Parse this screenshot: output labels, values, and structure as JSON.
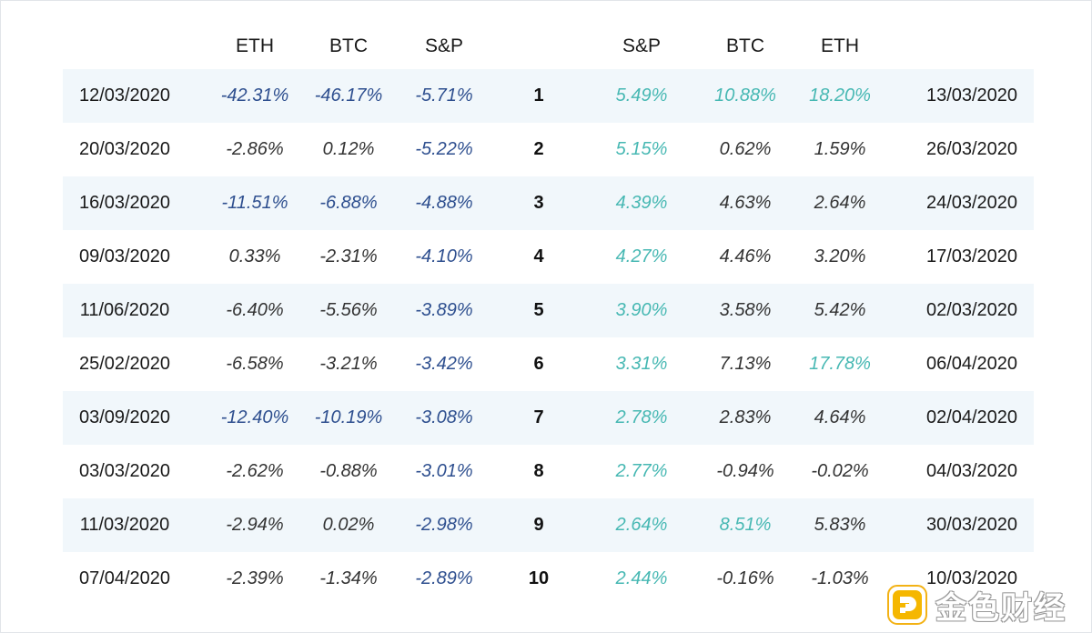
{
  "chart_data": {
    "type": "table",
    "columns": [
      "",
      "ETH",
      "BTC",
      "S&P",
      "",
      "S&P",
      "BTC",
      "ETH",
      ""
    ],
    "rows": [
      {
        "left_date": "12/03/2020",
        "eth_down": "-42.31%",
        "btc_down": "-46.17%",
        "sp_down": "-5.71%",
        "rank": "1",
        "sp_up": "5.49%",
        "btc_up": "10.88%",
        "eth_up": "18.20%",
        "right_date": "13/03/2020"
      },
      {
        "left_date": "20/03/2020",
        "eth_down": "-2.86%",
        "btc_down": "0.12%",
        "sp_down": "-5.22%",
        "rank": "2",
        "sp_up": "5.15%",
        "btc_up": "0.62%",
        "eth_up": "1.59%",
        "right_date": "26/03/2020"
      },
      {
        "left_date": "16/03/2020",
        "eth_down": "-11.51%",
        "btc_down": "-6.88%",
        "sp_down": "-4.88%",
        "rank": "3",
        "sp_up": "4.39%",
        "btc_up": "4.63%",
        "eth_up": "2.64%",
        "right_date": "24/03/2020"
      },
      {
        "left_date": "09/03/2020",
        "eth_down": "0.33%",
        "btc_down": "-2.31%",
        "sp_down": "-4.10%",
        "rank": "4",
        "sp_up": "4.27%",
        "btc_up": "4.46%",
        "eth_up": "3.20%",
        "right_date": "17/03/2020"
      },
      {
        "left_date": "11/06/2020",
        "eth_down": "-6.40%",
        "btc_down": "-5.56%",
        "sp_down": "-3.89%",
        "rank": "5",
        "sp_up": "3.90%",
        "btc_up": "3.58%",
        "eth_up": "5.42%",
        "right_date": "02/03/2020"
      },
      {
        "left_date": "25/02/2020",
        "eth_down": "-6.58%",
        "btc_down": "-3.21%",
        "sp_down": "-3.42%",
        "rank": "6",
        "sp_up": "3.31%",
        "btc_up": "7.13%",
        "eth_up": "17.78%",
        "right_date": "06/04/2020"
      },
      {
        "left_date": "03/09/2020",
        "eth_down": "-12.40%",
        "btc_down": "-10.19%",
        "sp_down": "-3.08%",
        "rank": "7",
        "sp_up": "2.78%",
        "btc_up": "2.83%",
        "eth_up": "4.64%",
        "right_date": "02/04/2020"
      },
      {
        "left_date": "03/03/2020",
        "eth_down": "-2.62%",
        "btc_down": "-0.88%",
        "sp_down": "-3.01%",
        "rank": "8",
        "sp_up": "2.77%",
        "btc_up": "-0.94%",
        "eth_up": "-0.02%",
        "right_date": "04/03/2020"
      },
      {
        "left_date": "11/03/2020",
        "eth_down": "-2.94%",
        "btc_down": "0.02%",
        "sp_down": "-2.98%",
        "rank": "9",
        "sp_up": "2.64%",
        "btc_up": "8.51%",
        "eth_up": "5.83%",
        "right_date": "30/03/2020"
      },
      {
        "left_date": "07/04/2020",
        "eth_down": "-2.39%",
        "btc_down": "-1.34%",
        "sp_down": "-2.89%",
        "rank": "10",
        "sp_up": "2.44%",
        "btc_up": "-0.16%",
        "eth_up": "-1.03%",
        "right_date": "10/03/2020"
      }
    ],
    "highlighted_cells": {
      "eth_down": [
        0,
        2,
        6
      ],
      "btc_down": [
        0,
        2,
        6
      ],
      "sp_down": [
        0,
        1,
        2,
        3,
        4,
        5,
        6,
        7,
        8,
        9
      ],
      "sp_up": [
        0,
        1,
        2,
        3,
        4,
        5,
        6,
        7,
        8,
        9
      ],
      "btc_up": [
        0,
        8
      ],
      "eth_up": [
        0,
        5
      ]
    },
    "colors": {
      "negative_highlight": "#2e4f8f",
      "positive_highlight": "#47b8b3",
      "plain_value": "#333333",
      "row_shade": "#f1f7fb"
    }
  },
  "watermark": {
    "text": "金色财经",
    "icon": "brand-logo-icon"
  }
}
